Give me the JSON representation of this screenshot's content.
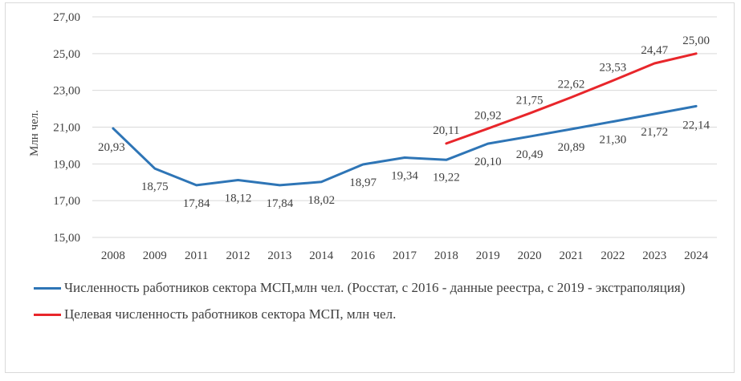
{
  "chart_data": {
    "type": "line",
    "ylabel": "Млн чел.",
    "ylim": [
      15,
      27
    ],
    "yticks": [
      "15,00",
      "17,00",
      "19,00",
      "21,00",
      "23,00",
      "25,00",
      "27,00"
    ],
    "categories": [
      "2008",
      "2009",
      "2011",
      "2012",
      "2013",
      "2014",
      "2016",
      "2017",
      "2018",
      "2019",
      "2020",
      "2021",
      "2022",
      "2023",
      "2024"
    ],
    "grid": true,
    "legend_position": "bottom",
    "series": [
      {
        "name": "Численность работников сектора МСП,млн чел. (Росстат, с 2016 - данные реестра, с 2019 - экстраполяция)",
        "color": "#2e75b6",
        "values": [
          20.93,
          18.75,
          17.84,
          18.12,
          17.84,
          18.02,
          18.97,
          19.34,
          19.22,
          20.1,
          20.49,
          20.89,
          21.3,
          21.72,
          22.14
        ],
        "labels": [
          "20,93",
          "18,75",
          "17,84",
          "18,12",
          "17,84",
          "18,02",
          "18,97",
          "19,34",
          "19,22",
          "20,10",
          "20,49",
          "20,89",
          "21,30",
          "21,72",
          "22,14"
        ]
      },
      {
        "name": "Целевая численность работников сектора МСП, млн чел.",
        "color": "#e8262b",
        "values": [
          null,
          null,
          null,
          null,
          null,
          null,
          null,
          null,
          20.11,
          20.92,
          21.75,
          22.62,
          23.53,
          24.47,
          25.0
        ],
        "labels": [
          null,
          null,
          null,
          null,
          null,
          null,
          null,
          null,
          "20,11",
          "20,92",
          "21,75",
          "22,62",
          "23,53",
          "24,47",
          "25,00"
        ]
      }
    ]
  }
}
